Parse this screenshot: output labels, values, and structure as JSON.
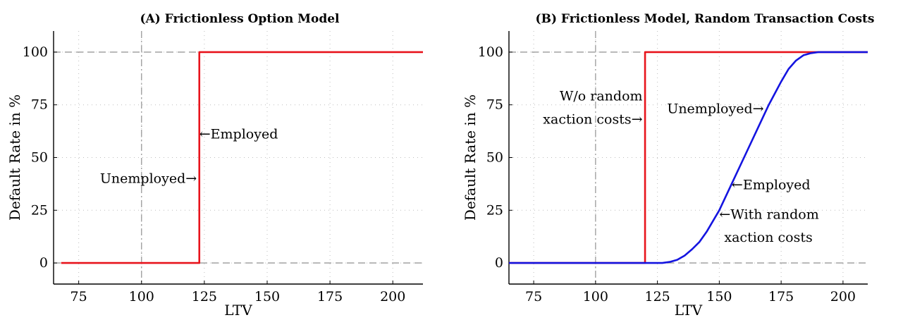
{
  "chart_data": [
    {
      "type": "line",
      "title": "(A) Frictionless Option Model",
      "xlabel": "LTV",
      "ylabel": "Default Rate in %",
      "xlim": [
        65,
        212
      ],
      "ylim": [
        -10,
        110
      ],
      "xticks": [
        75,
        100,
        125,
        150,
        175,
        200
      ],
      "yticks": [
        0,
        25,
        50,
        75,
        100
      ],
      "grid": true,
      "reference_lines": {
        "x": [
          100
        ],
        "y": [
          0,
          100
        ]
      },
      "series": [
        {
          "color": "#e8141c",
          "x": [
            68,
            123,
            123,
            212
          ],
          "y": [
            0,
            0,
            100,
            100
          ]
        }
      ],
      "annotations": [
        {
          "text": "←Employed",
          "x": 123,
          "y": 61,
          "anchor": "start"
        },
        {
          "text": "Unemployed→",
          "x": 122,
          "y": 40,
          "anchor": "end"
        }
      ]
    },
    {
      "type": "line",
      "title": "(B) Frictionless Model, Random Transaction Costs",
      "xlabel": "LTV",
      "ylabel": "Default Rate in %",
      "xlim": [
        65,
        210
      ],
      "ylim": [
        -10,
        110
      ],
      "xticks": [
        75,
        100,
        125,
        150,
        175,
        200
      ],
      "yticks": [
        0,
        25,
        50,
        75,
        100
      ],
      "grid": true,
      "reference_lines": {
        "x": [
          100
        ],
        "y": [
          0,
          100
        ]
      },
      "series": [
        {
          "color": "#e8141c",
          "x": [
            65,
            120,
            120,
            210
          ],
          "y": [
            0,
            0,
            100,
            100
          ]
        },
        {
          "color": "#1414e0",
          "x": [
            65,
            127,
            130,
            133,
            136,
            139,
            142,
            145,
            150,
            160,
            170,
            175,
            178,
            181,
            184,
            187,
            190,
            193,
            210
          ],
          "y": [
            0,
            0,
            0.5,
            1.5,
            3.5,
            6.5,
            10,
            15,
            25,
            50,
            75,
            86,
            92,
            96,
            98.5,
            99.5,
            100,
            100,
            100
          ]
        }
      ],
      "annotations": [
        {
          "text": "W/o random",
          "x": 119,
          "y": 79,
          "anchor": "end"
        },
        {
          "text": "xaction costs→",
          "x": 119,
          "y": 68,
          "anchor": "end"
        },
        {
          "text": "Unemployed→",
          "x": 168,
          "y": 73,
          "anchor": "end"
        },
        {
          "text": "←Employed",
          "x": 155,
          "y": 37,
          "anchor": "start"
        },
        {
          "text": "←With random",
          "x": 150,
          "y": 23,
          "anchor": "start"
        },
        {
          "text": "xaction costs",
          "x": 152,
          "y": 12,
          "anchor": "start"
        }
      ]
    }
  ]
}
